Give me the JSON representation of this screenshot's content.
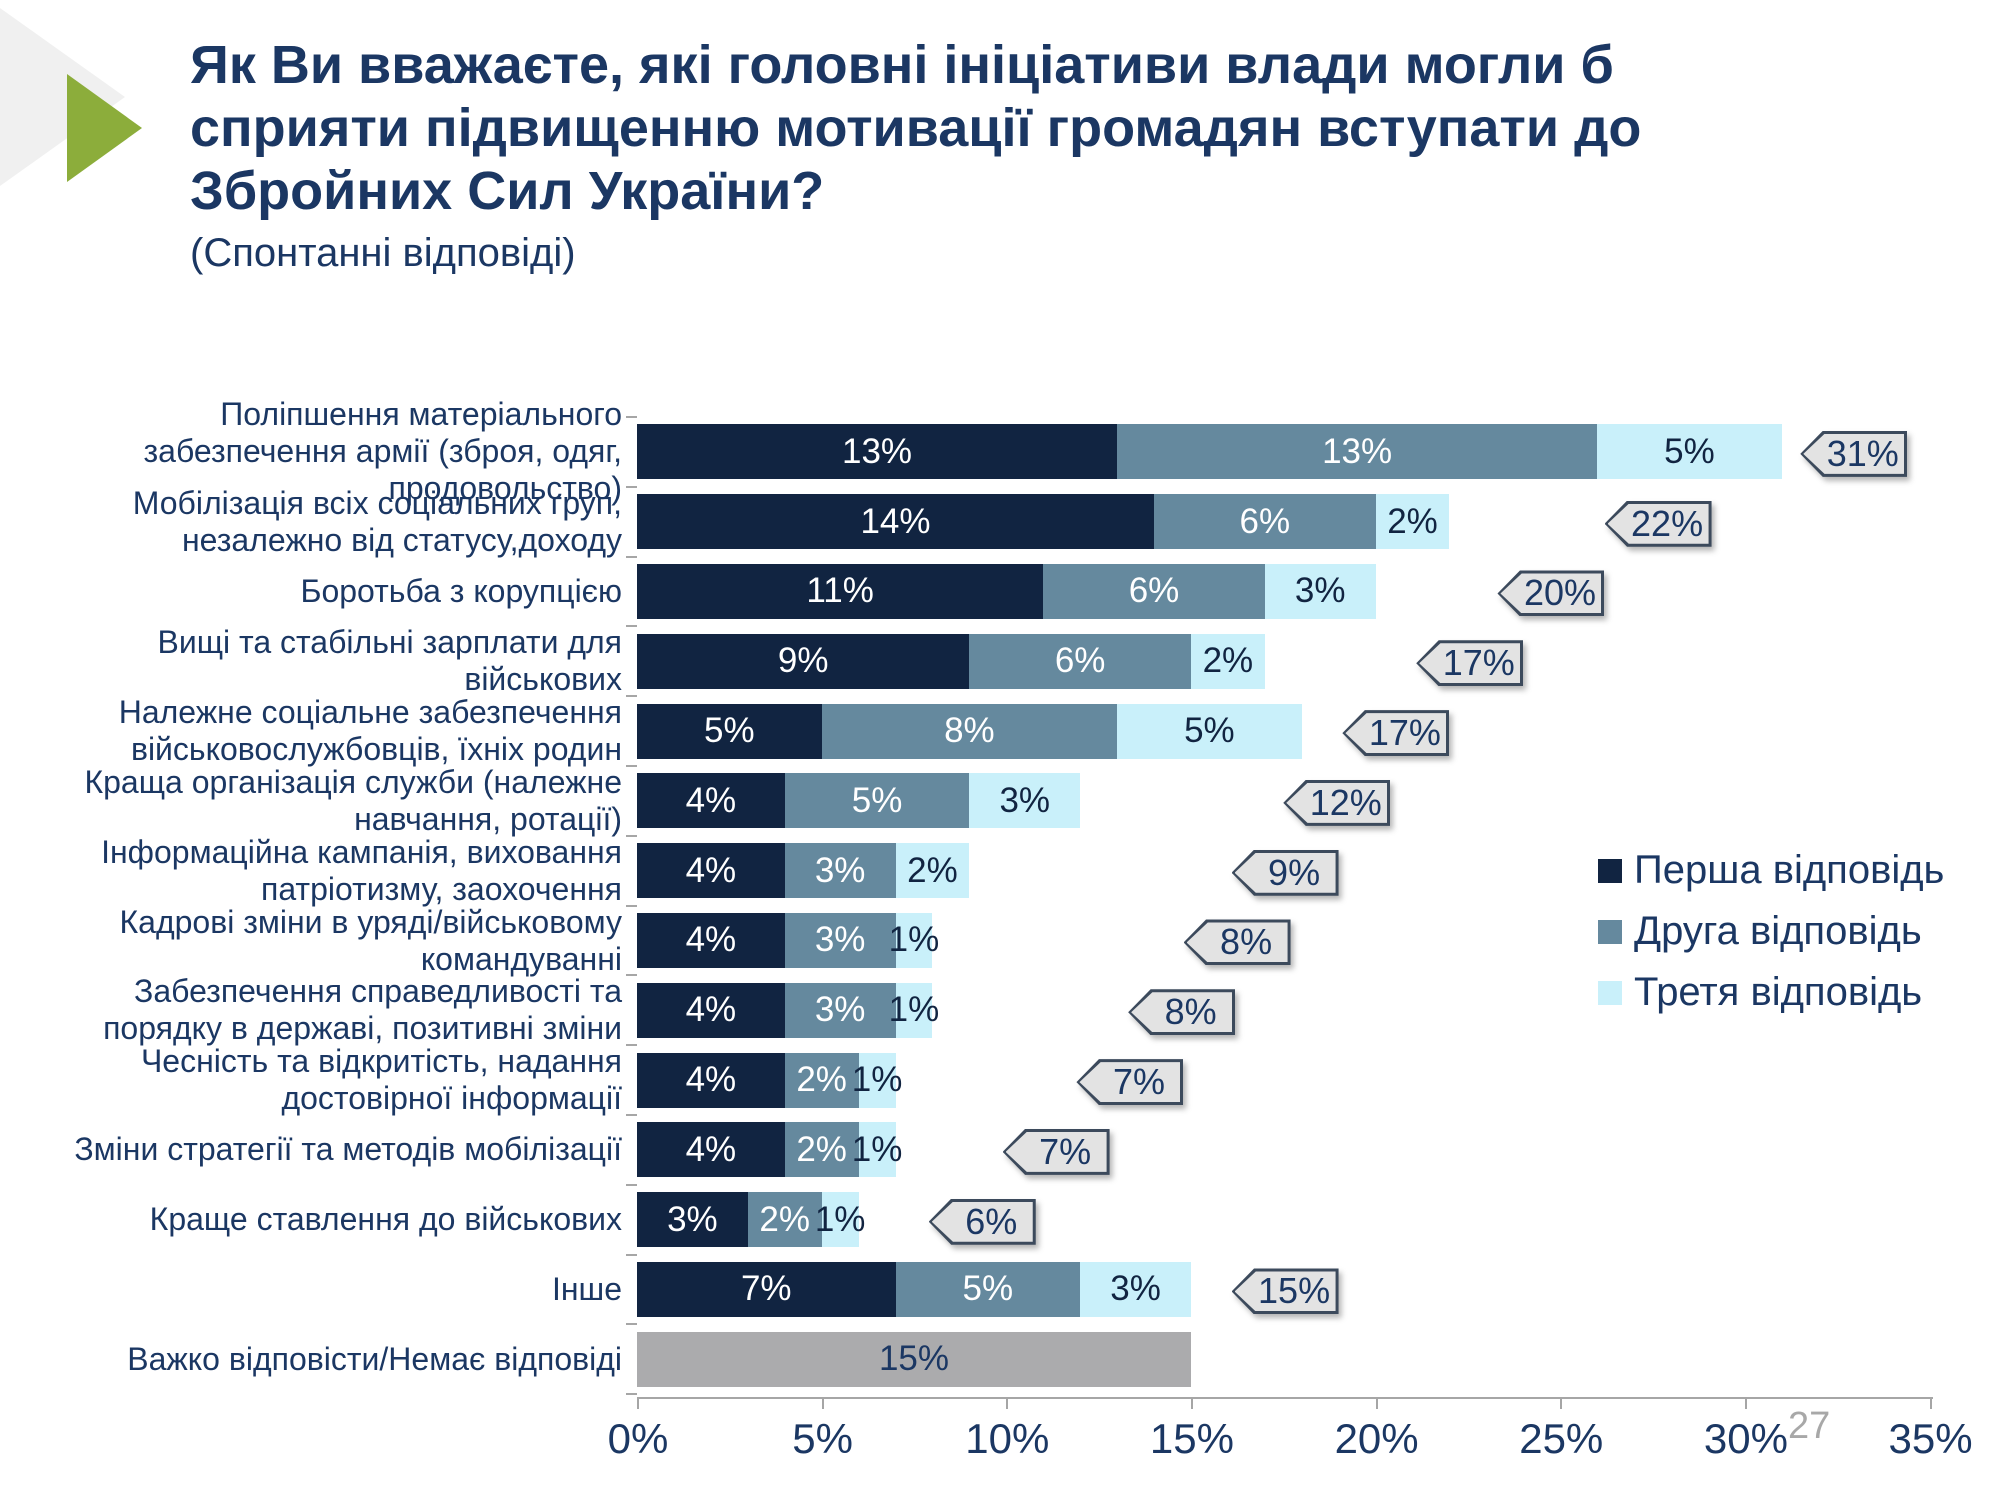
{
  "slide": {
    "title_lines": [
      "Як Ви вважаєте, які головні ініціативи влади могли б",
      "сприяти підвищенню мотивації громадян вступати до",
      "Збройних Сил України?"
    ],
    "subtitle": "(Спонтанні відповіді)",
    "page_number": "27"
  },
  "colors": {
    "first_answer": "#112441",
    "second_answer": "#65899e",
    "third_answer": "#c9f0fa",
    "no_answer_bar": "#ababad",
    "badge_fill": "#e3e3e3",
    "badge_border": "#3c4a5c",
    "axis": "#a6a6a6",
    "text": "#1b3763",
    "deco_green": "#8cad3b",
    "deco_gray": "#f0f0f0"
  },
  "legend": {
    "items": [
      {
        "label": "Перша відповідь",
        "color": "#112441"
      },
      {
        "label": "Друга відповідь",
        "color": "#65899e"
      },
      {
        "label": "Третя відповідь",
        "color": "#c9f0fa"
      }
    ]
  },
  "chart_data": {
    "type": "bar",
    "orientation": "horizontal",
    "stacked": true,
    "xlim": [
      0,
      35
    ],
    "x_tick_step": 5,
    "x_tick_labels": [
      "0%",
      "5%",
      "10%",
      "15%",
      "20%",
      "25%",
      "30%",
      "35%"
    ],
    "grid": false,
    "legend_position": "right",
    "series_names": [
      "Перша відповідь",
      "Друга відповідь",
      "Третя відповідь"
    ],
    "rows": [
      {
        "label": "Поліпшення матеріального забезпечення армії (зброя, одяг, продовольство)",
        "values": [
          13,
          13,
          5
        ],
        "labels": [
          "13%",
          "13%",
          "5%"
        ],
        "total": "31%",
        "badge_pos": 31.5
      },
      {
        "label": "Мобілізація всіх соціальних груп, незалежно від статусу,доходу",
        "values": [
          14,
          6,
          2
        ],
        "labels": [
          "14%",
          "6%",
          "2%"
        ],
        "total": "22%",
        "badge_pos": 26.2
      },
      {
        "label": "Боротьба з корупцією",
        "values": [
          11,
          6,
          3
        ],
        "labels": [
          "11%",
          "6%",
          "3%"
        ],
        "total": "20%",
        "badge_pos": 23.3
      },
      {
        "label": "Вищі та стабільні зарплати для військових",
        "values": [
          9,
          6,
          2
        ],
        "labels": [
          "9%",
          "6%",
          "2%"
        ],
        "total": "17%",
        "badge_pos": 21.1
      },
      {
        "label": "Належне соціальне забезпечення військовослужбовців, їхніх родин",
        "values": [
          5,
          8,
          5
        ],
        "labels": [
          "5%",
          "8%",
          "5%"
        ],
        "total": "17%",
        "badge_pos": 19.1
      },
      {
        "label": "Краща організація служби (належне навчання, ротації)",
        "values": [
          4,
          5,
          3
        ],
        "labels": [
          "4%",
          "5%",
          "3%"
        ],
        "total": "12%",
        "badge_pos": 17.5
      },
      {
        "label": "Інформаційна кампанія, виховання патріотизму, заохочення",
        "values": [
          4,
          3,
          2
        ],
        "labels": [
          "4%",
          "3%",
          "2%"
        ],
        "total": "9%",
        "badge_pos": 16.1
      },
      {
        "label": "Кадрові зміни в уряді/військовому командуванні",
        "values": [
          4,
          3,
          1
        ],
        "labels": [
          "4%",
          "3%",
          "1%"
        ],
        "total": "8%",
        "badge_pos": 14.8
      },
      {
        "label": "Забезпечення справедливості та порядку в державі, позитивні зміни",
        "values": [
          4,
          3,
          1
        ],
        "labels": [
          "4%",
          "3%",
          "1%"
        ],
        "total": "8%",
        "badge_pos": 13.3
      },
      {
        "label": "Чесність та відкритість, надання достовірної інформації",
        "values": [
          4,
          2,
          1
        ],
        "labels": [
          "4%",
          "2%",
          "1%"
        ],
        "total": "7%",
        "badge_pos": 11.9
      },
      {
        "label": "Зміни стратегії та методів мобілізації",
        "values": [
          4,
          2,
          1
        ],
        "labels": [
          "4%",
          "2%",
          "1%"
        ],
        "total": "7%",
        "badge_pos": 9.9
      },
      {
        "label": "Краще ставлення до військових",
        "values": [
          3,
          2,
          1
        ],
        "labels": [
          "3%",
          "2%",
          "1%"
        ],
        "total": "6%",
        "badge_pos": 7.9
      },
      {
        "label": "Інше",
        "values": [
          7,
          5,
          3
        ],
        "labels": [
          "7%",
          "5%",
          "3%"
        ],
        "total": "15%",
        "badge_pos": 16.1
      },
      {
        "label": "Важко відповісти/Немає відповіді",
        "values": [],
        "no_answer_value": 15,
        "no_answer_label": "15%"
      }
    ]
  }
}
